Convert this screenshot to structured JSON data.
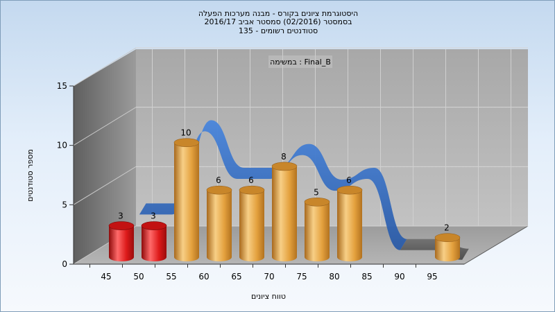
{
  "chart_data": {
    "type": "bar",
    "title_lines": [
      "היסטוגרמת ציונים בקורס - מבנה מערכות הפעלה",
      "בסמסטר  (02/2016)  סמסטר אביב 2016/17",
      "סטודנטים רשומים - 135"
    ],
    "subtitle": "במשימה : Final_B",
    "xlabel": "טווח ציונים",
    "ylabel": "מספר סטודנטים",
    "categories": [
      "45",
      "50",
      "55",
      "60",
      "65",
      "70",
      "75",
      "80",
      "85",
      "90",
      "95"
    ],
    "values": [
      3,
      3,
      10,
      6,
      6,
      8,
      5,
      6,
      0,
      0,
      2
    ],
    "data_labels": [
      "3",
      "3",
      "10",
      "6",
      "6",
      "8",
      "5",
      "6",
      "",
      "",
      "2"
    ],
    "bar_colors": [
      "#d81a1a",
      "#d81a1a",
      "#e3a03c",
      "#e3a03c",
      "#e3a03c",
      "#e3a03c",
      "#e3a03c",
      "#e3a03c",
      "#e3a03c",
      "#e3a03c",
      "#e3a03c"
    ],
    "ylim": [
      0,
      15
    ],
    "yticks": [
      0,
      5,
      10,
      15
    ],
    "grid": true,
    "ribbon_colors": {
      "primary": "#3a72c8",
      "secondary": "#5e5e5e"
    }
  }
}
